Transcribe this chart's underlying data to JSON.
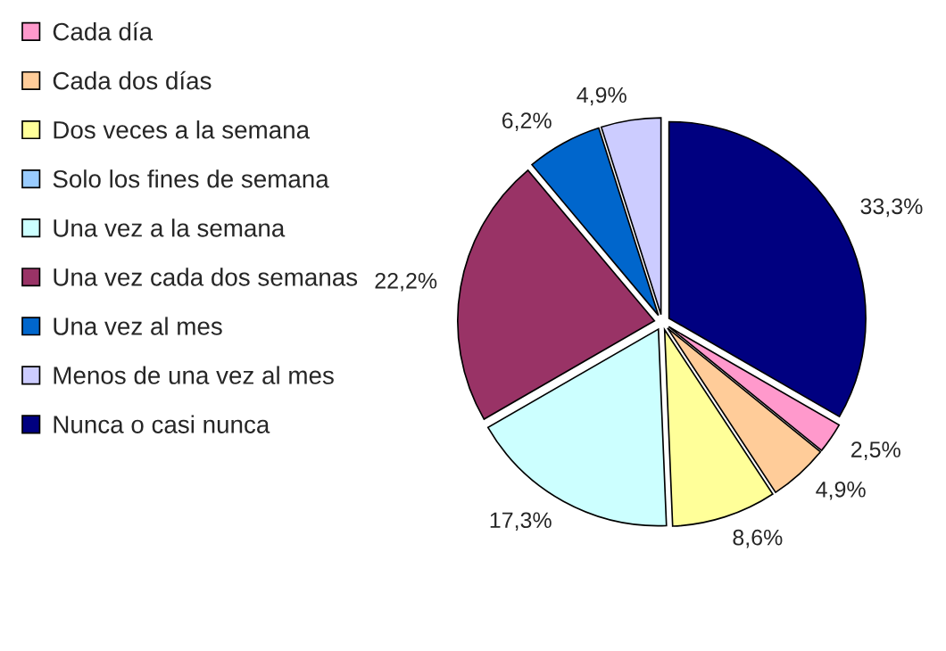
{
  "chart_data": {
    "type": "pie",
    "categories": [
      "Cada día",
      "Cada dos días",
      "Dos veces a la semana",
      "Solo los fines de semana",
      "Una vez a la semana",
      "Una vez cada dos semanas",
      "Una vez al mes",
      "Menos de una vez al mes",
      "Nunca o casi nunca"
    ],
    "values": [
      2.5,
      4.9,
      8.6,
      0,
      17.3,
      22.2,
      6.2,
      4.9,
      33.3
    ],
    "value_labels": [
      "2,5%",
      "4,9%",
      "8,6%",
      null,
      "17,3%",
      "22,2%",
      "6,2%",
      "4,9%",
      "33,3%"
    ],
    "colors": [
      "#ff99cc",
      "#ffcc99",
      "#ffff99",
      "#99ccff",
      "#ccffff",
      "#993366",
      "#0066cc",
      "#ccccff",
      "#000080"
    ],
    "legend": "left"
  }
}
